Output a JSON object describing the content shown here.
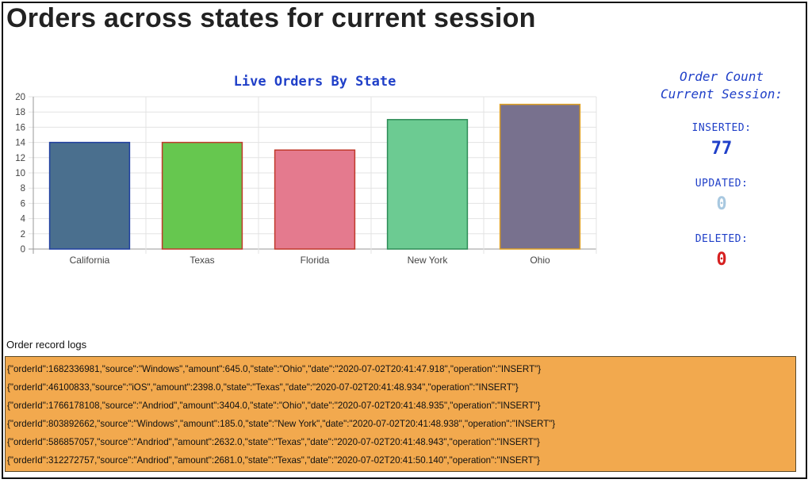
{
  "header": {
    "title": "Orders across states for current session"
  },
  "chart_data": {
    "type": "bar",
    "title": "Live Orders By State",
    "categories": [
      "California",
      "Texas",
      "Florida",
      "New York",
      "Ohio"
    ],
    "values": [
      14,
      14,
      13,
      17,
      19
    ],
    "ylim": [
      0,
      20
    ],
    "ytick_step": 2,
    "grid": true,
    "bar_fills": [
      "#4a6f8e",
      "#66c74f",
      "#e47a8e",
      "#6ccb92",
      "#78718e"
    ],
    "bar_strokes": [
      "#1f3fa0",
      "#c0392b",
      "#c0392b",
      "#2e8b57",
      "#e0a020"
    ],
    "title_color": "#1f3fc8"
  },
  "counts": {
    "title_line1": "Order Count",
    "title_line2": "Current Session:",
    "inserted_label": "INSERTED:",
    "inserted_value": "77",
    "inserted_color": "#1f3fc8",
    "updated_label": "UPDATED:",
    "updated_value": "0",
    "updated_color": "#a8c8e0",
    "deleted_label": "DELETED:",
    "deleted_value": "0",
    "deleted_color": "#d62020"
  },
  "logs": {
    "label": "Order record logs",
    "background": "#f2a94e",
    "lines": [
      "{\"orderId\":1682336981,\"source\":\"Windows\",\"amount\":645.0,\"state\":\"Ohio\",\"date\":\"2020-07-02T20:41:47.918\",\"operation\":\"INSERT\"}",
      "{\"orderId\":46100833,\"source\":\"iOS\",\"amount\":2398.0,\"state\":\"Texas\",\"date\":\"2020-07-02T20:41:48.934\",\"operation\":\"INSERT\"}",
      "{\"orderId\":1766178108,\"source\":\"Andriod\",\"amount\":3404.0,\"state\":\"Ohio\",\"date\":\"2020-07-02T20:41:48.935\",\"operation\":\"INSERT\"}",
      "{\"orderId\":803892662,\"source\":\"Windows\",\"amount\":185.0,\"state\":\"New York\",\"date\":\"2020-07-02T20:41:48.938\",\"operation\":\"INSERT\"}",
      "{\"orderId\":586857057,\"source\":\"Andriod\",\"amount\":2632.0,\"state\":\"Texas\",\"date\":\"2020-07-02T20:41:48.943\",\"operation\":\"INSERT\"}",
      "{\"orderId\":312272757,\"source\":\"Andriod\",\"amount\":2681.0,\"state\":\"Texas\",\"date\":\"2020-07-02T20:41:50.140\",\"operation\":\"INSERT\"}"
    ]
  }
}
